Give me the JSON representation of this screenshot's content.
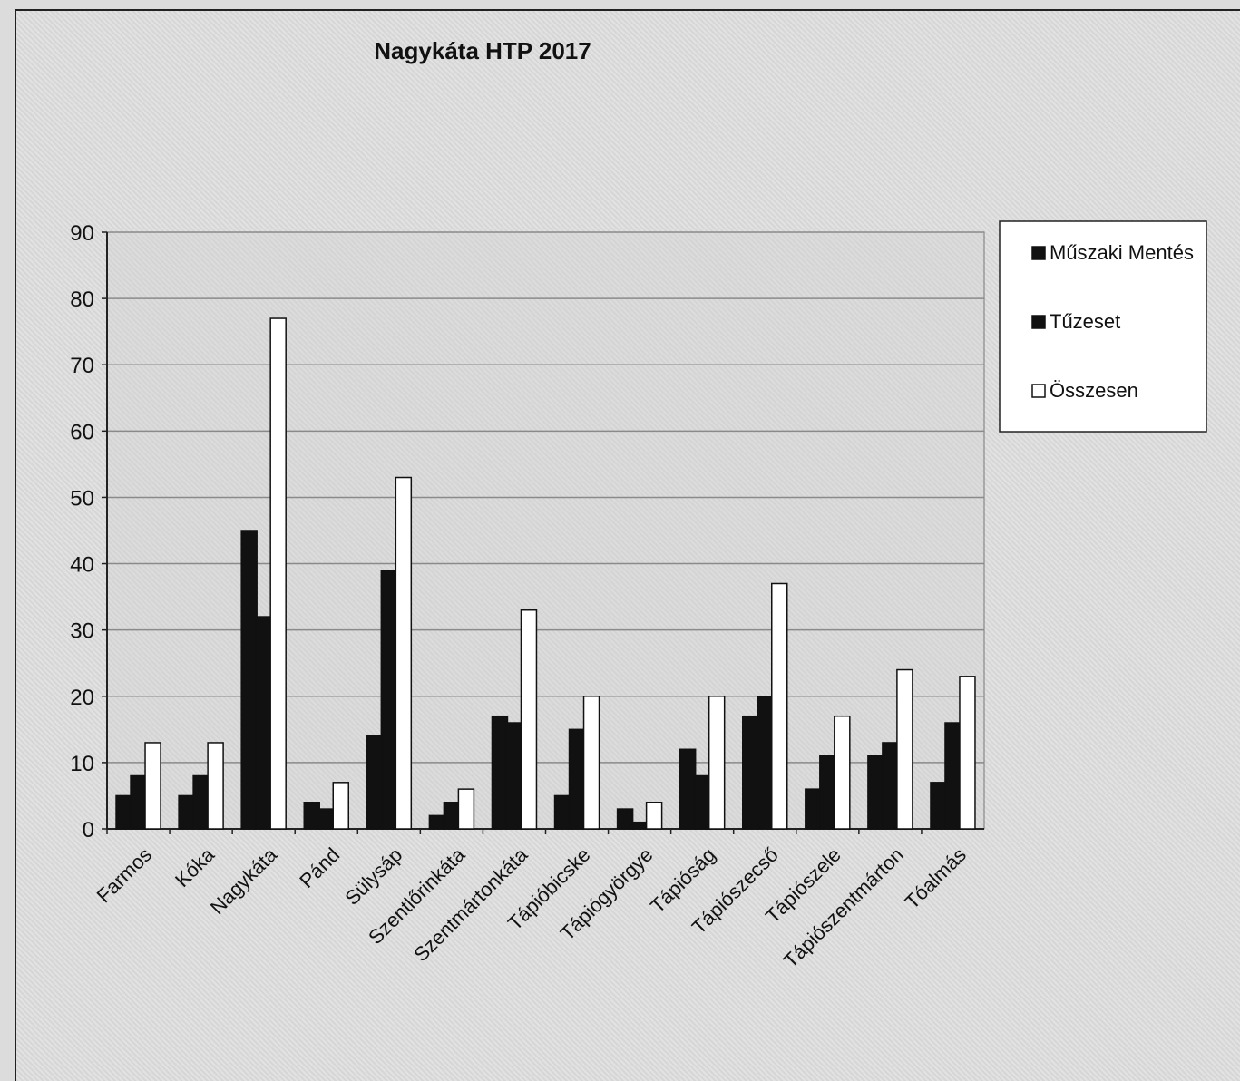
{
  "chart_data": {
    "type": "bar",
    "title": "Nagykáta HTP 2017",
    "categories": [
      "Farmos",
      "Kóka",
      "Nagykáta",
      "Pánd",
      "Sülysáp",
      "Szentlőrinkáta",
      "Szentmártonkáta",
      "Tápióbicske",
      "Tápiógyörgye",
      "Tápióság",
      "Tápiószecső",
      "Tápiószele",
      "Tápiószentmárton",
      "Tóalmás"
    ],
    "series": [
      {
        "name": "Műszaki Mentés",
        "values": [
          5,
          5,
          45,
          4,
          14,
          2,
          17,
          5,
          3,
          12,
          17,
          6,
          11,
          7
        ]
      },
      {
        "name": "Tűzeset",
        "values": [
          8,
          8,
          32,
          3,
          39,
          4,
          16,
          15,
          1,
          8,
          20,
          11,
          13,
          16
        ]
      },
      {
        "name": "Összesen",
        "values": [
          13,
          13,
          77,
          7,
          53,
          6,
          33,
          20,
          4,
          20,
          37,
          17,
          24,
          23
        ]
      }
    ],
    "colors": {
      "Műszaki Mentés": "#111111",
      "Tűzeset": "#111111",
      "Összesen": "#ffffff"
    },
    "ylim": [
      0,
      90
    ],
    "yticks": [
      0,
      10,
      20,
      30,
      40,
      50,
      60,
      70,
      80,
      90
    ],
    "grid": true,
    "legend": "right",
    "xlabel": "",
    "ylabel": ""
  }
}
